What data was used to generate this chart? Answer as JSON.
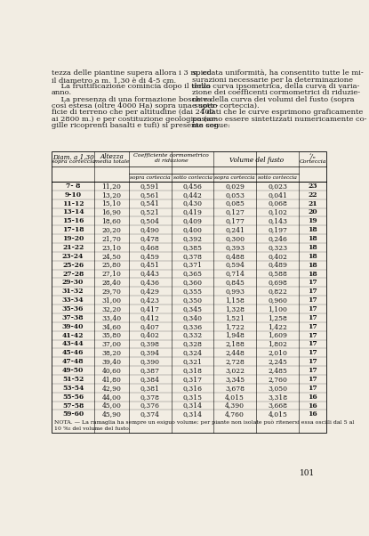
{
  "text_left": "tezza delle piantine supera allora i 3 m. ed\nil diametro a m. 1,30 è di 4-5 cm.\n    La fruttificazione comincia dopo il terzo\nanno.\n    La presenza di una formazione boschiva\ncosì estesa (oltre 4000 Ha) sopra una super-\nficie di terreno che per altitudine (dai 2400\nai 2800 m.) e per costituzione geologica (ar-\ngille ricoprenti basalti e tufi) si presenta con",
  "text_right": "spiccata uniformità, ha consentito tutte le mi-\nsurazioni necessarie per la determinazione\ndella curva ipsometrica, della curva di varia-\nzione dei coefficenti cormometrici di riduzie-\nne e della curva dei volumi del fusto (sopra\ne sotto corteccia).\n    I dati che le curve esprimono graficamente\npossono essere sintetizzati numericamente co-\nme segue:",
  "rows": [
    [
      "7- 8",
      "11,20",
      "0,591",
      "0,456",
      "0,029",
      "0,023",
      "23"
    ],
    [
      "9-10",
      "13,20",
      "0,561",
      "0,442",
      "0,053",
      "0,041",
      "22"
    ],
    [
      "11-12",
      "15,10",
      "0,541",
      "0,430",
      "0,085",
      "0,068",
      "21"
    ],
    [
      "13-14",
      "16,90",
      "0,521",
      "0,419",
      "0,127",
      "0,102",
      "20"
    ],
    [
      "15-16",
      "18,60",
      "0,504",
      "0,409",
      "0,177",
      "0,143",
      "19"
    ],
    [
      "17-18",
      "20,20",
      "0,490",
      "0,400",
      "0,241",
      "0,197",
      "18"
    ],
    [
      "19-20",
      "21,70",
      "0,478",
      "0,392",
      "0,300",
      "0,246",
      "18"
    ],
    [
      "21-22",
      "23,10",
      "0,468",
      "0,385",
      "0,393",
      "0,323",
      "18"
    ],
    [
      "23-24",
      "24,50",
      "0,459",
      "0,378",
      "0,488",
      "0,402",
      "18"
    ],
    [
      "25-26",
      "25,80",
      "0,451",
      "0,371",
      "0,594",
      "0,489",
      "18"
    ],
    [
      "27-28",
      "27,10",
      "0,443",
      "0,365",
      "0,714",
      "0,588",
      "18"
    ],
    [
      "29-30",
      "28,40",
      "0,436",
      "0,360",
      "0,845",
      "0,698",
      "17"
    ],
    [
      "31-32",
      "29,70",
      "0,429",
      "0,355",
      "0,993",
      "0,822",
      "17"
    ],
    [
      "33-34",
      "31,00",
      "0,423",
      "0,350",
      "1,158",
      "0,960",
      "17"
    ],
    [
      "35-36",
      "32,20",
      "0,417",
      "0,345",
      "1,328",
      "1,100",
      "17"
    ],
    [
      "37-38",
      "33,40",
      "0,412",
      "0,340",
      "1,521",
      "1,258",
      "17"
    ],
    [
      "39-40",
      "34,60",
      "0,407",
      "0,336",
      "1,722",
      "1,422",
      "17"
    ],
    [
      "41-42",
      "35,80",
      "0,402",
      "0,332",
      "1,948",
      "1,609",
      "17"
    ],
    [
      "43-44",
      "37,00",
      "0,398",
      "0,328",
      "2,188",
      "1,802",
      "17"
    ],
    [
      "45-46",
      "38,20",
      "0,394",
      "0,324",
      "2,448",
      "2,010",
      "17"
    ],
    [
      "47-48",
      "39,40",
      "0,390",
      "0,321",
      "2,728",
      "2,245",
      "17"
    ],
    [
      "49-50",
      "40,60",
      "0,387",
      "0,318",
      "3,022",
      "2,485",
      "17"
    ],
    [
      "51-52",
      "41,80",
      "0,384",
      "0,317",
      "3,345",
      "2,760",
      "17"
    ],
    [
      "53-54",
      "42,90",
      "0,381",
      "0,316",
      "3,678",
      "3,050",
      "17"
    ],
    [
      "55-56",
      "44,00",
      "0,378",
      "0,315",
      "4,015",
      "3,318",
      "16"
    ],
    [
      "57-58",
      "45,00",
      "0,376",
      "0,314",
      "4,390",
      "3,668",
      "16"
    ],
    [
      "59-60",
      "45,90",
      "0,374",
      "0,314",
      "4,760",
      "4,015",
      "16"
    ]
  ],
  "footnote_line1": "NOTA. — La ramaglia ha sempre un esiguo volume; per piante non isolate può ritenersi essa oscilli dal 5 al",
  "footnote_line2": "10 %₂ del volume del fusto.",
  "page_number": "101",
  "bg_color": "#f2ede3"
}
